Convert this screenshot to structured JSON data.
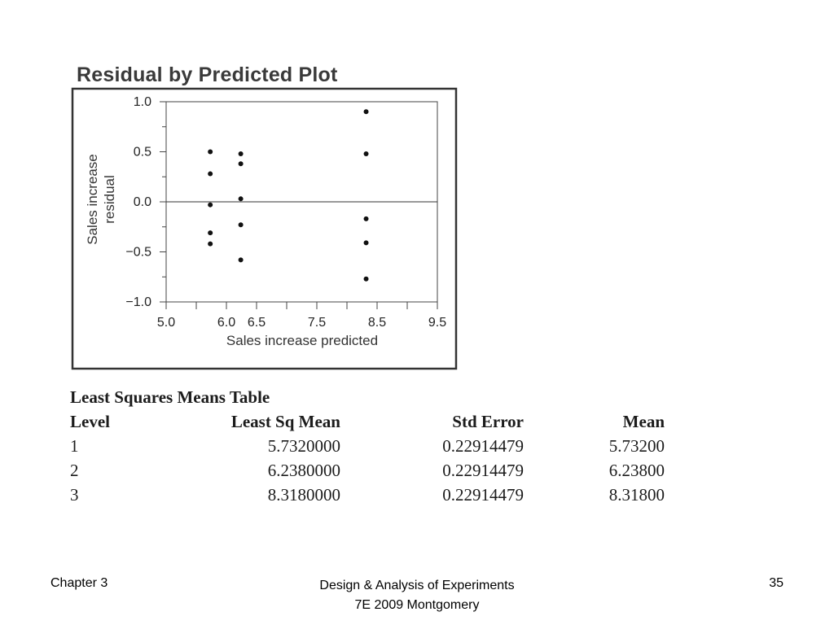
{
  "chart_data": {
    "type": "scatter",
    "title": "Residual by Predicted Plot",
    "xlabel": "Sales increase predicted",
    "ylabel_lines": [
      "Sales increase",
      "residual"
    ],
    "xlim": [
      5.0,
      9.5
    ],
    "ylim": [
      -1.0,
      1.0
    ],
    "x_ticks": [
      "5.0",
      "6.0",
      "6.5",
      "7.5",
      "8.5",
      "9.5"
    ],
    "y_ticks": [
      "1.0",
      "0.5",
      "0.0",
      "−0.5",
      "−1.0"
    ],
    "reference_line_y": 0.0,
    "grid": false,
    "points": [
      {
        "x": 5.732,
        "y": 0.5
      },
      {
        "x": 5.732,
        "y": 0.28
      },
      {
        "x": 5.732,
        "y": -0.03
      },
      {
        "x": 5.732,
        "y": -0.31
      },
      {
        "x": 5.732,
        "y": -0.42
      },
      {
        "x": 6.238,
        "y": 0.48
      },
      {
        "x": 6.238,
        "y": 0.38
      },
      {
        "x": 6.238,
        "y": 0.03
      },
      {
        "x": 6.238,
        "y": -0.23
      },
      {
        "x": 6.238,
        "y": -0.58
      },
      {
        "x": 8.318,
        "y": 0.9
      },
      {
        "x": 8.318,
        "y": 0.48
      },
      {
        "x": 8.318,
        "y": -0.17
      },
      {
        "x": 8.318,
        "y": -0.41
      },
      {
        "x": 8.318,
        "y": -0.77
      }
    ]
  },
  "table": {
    "title": "Least Squares Means Table",
    "headers": [
      "Level",
      "Least Sq Mean",
      "Std Error",
      "Mean"
    ],
    "rows": [
      [
        "1",
        "5.7320000",
        "0.22914479",
        "5.73200"
      ],
      [
        "2",
        "6.2380000",
        "0.22914479",
        "6.23800"
      ],
      [
        "3",
        "8.3180000",
        "0.22914479",
        "8.31800"
      ]
    ]
  },
  "footer": {
    "left": "Chapter 3",
    "center_line1": "Design & Analysis of Experiments",
    "center_line2": "7E 2009 Montgomery",
    "right": "35"
  }
}
